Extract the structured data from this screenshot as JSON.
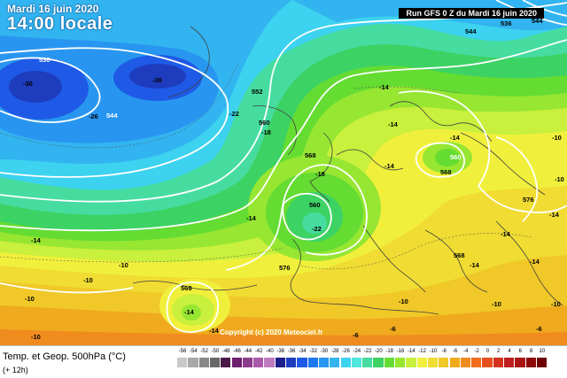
{
  "header": {
    "date": "Mardi 16 juin 2020",
    "time": "14:00 locale",
    "run": "Run GFS 0 Z du Mardi 16 juin 2020"
  },
  "legend": {
    "title": "Temp. et Geop. 500hPa (°C)",
    "subtitle": "(+ 12h)",
    "scale_values": [
      "-56",
      "-54",
      "-52",
      "-50",
      "-48",
      "-46",
      "-44",
      "-42",
      "-40",
      "-38",
      "-36",
      "-34",
      "-32",
      "-30",
      "-28",
      "-26",
      "-24",
      "-22",
      "-20",
      "-18",
      "-16",
      "-14",
      "-12",
      "-10",
      "-8",
      "-6",
      "-4",
      "-2",
      "0",
      "2",
      "4",
      "6",
      "8",
      "10"
    ],
    "scale_colors": [
      "#c8c8c8",
      "#a8a8a8",
      "#888888",
      "#686868",
      "#4b1a4b",
      "#6e1e6e",
      "#8c3c8c",
      "#aa5aaa",
      "#c07ac0",
      "#1e1e8c",
      "#1e3cbe",
      "#1e5ae6",
      "#1e78f0",
      "#2896f0",
      "#32b4f0",
      "#3cd2f0",
      "#50e6dc",
      "#46dca0",
      "#3cd264",
      "#64dc32",
      "#96e632",
      "#c8f03c",
      "#f0f03c",
      "#f0dc32",
      "#f0c828",
      "#f0aa1e",
      "#f08c1e",
      "#f06e1e",
      "#e6501e",
      "#d2321e",
      "#be1e1e",
      "#aa1414",
      "#8c0a0a",
      "#6e0000"
    ],
    "copyright": "Copyright (c) 2020 Meteociel.fr"
  },
  "map": {
    "geopotential_labels": [
      "536",
      "544",
      "552",
      "560",
      "568",
      "576",
      "560",
      "568",
      "560",
      "568",
      "576",
      "544",
      "536",
      "544",
      "568"
    ],
    "temperature_labels": [
      "-30",
      "-30",
      "-26",
      "-22",
      "-18",
      "-18",
      "-14",
      "-14",
      "-14",
      "-14",
      "-14",
      "-14",
      "-14",
      "-14",
      "-14",
      "-22",
      "-10",
      "-10",
      "-10",
      "-10",
      "-10",
      "-6",
      "-6",
      "-6",
      "-10",
      "-14",
      "-14",
      "-10",
      "-10",
      "-14",
      "-10"
    ]
  }
}
